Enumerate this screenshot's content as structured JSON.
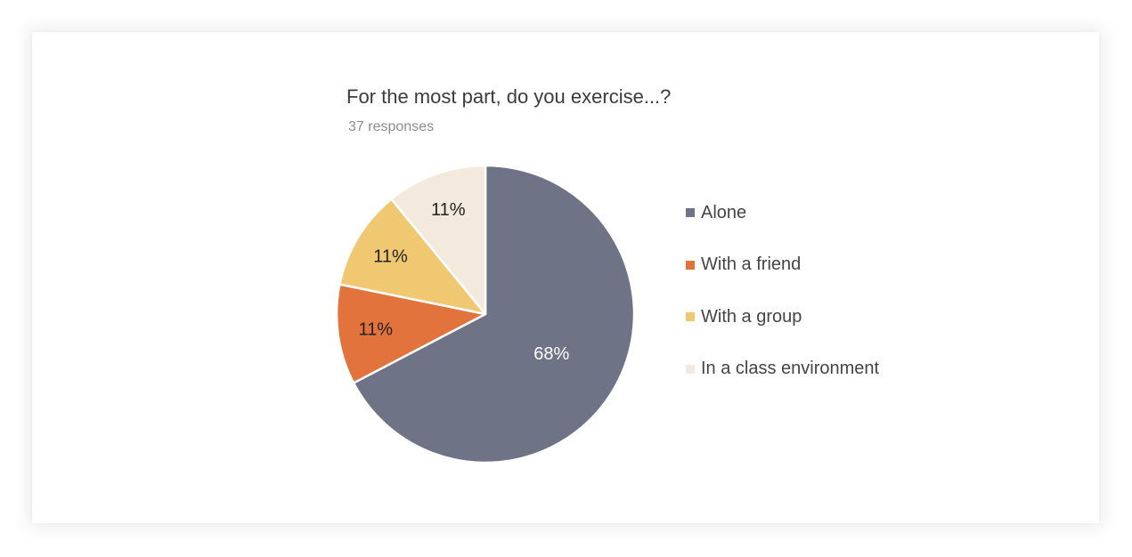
{
  "chart_data": {
    "type": "pie",
    "title": "For the most part, do you exercise...?",
    "subtitle": "37 responses",
    "legend_position": "right",
    "slices": [
      {
        "name": "Alone",
        "value": 68,
        "label": "68%",
        "color": "#6e7486",
        "label_color": "#ffffff"
      },
      {
        "name": "With a friend",
        "value": 11,
        "label": "11%",
        "color": "#e3733c",
        "label_color": "#222222"
      },
      {
        "name": "With a group",
        "value": 11,
        "label": "11%",
        "color": "#f0c872",
        "label_color": "#222222"
      },
      {
        "name": "In a class environment",
        "value": 11,
        "label": "11%",
        "color": "#f3e9dc",
        "label_color": "#222222"
      }
    ]
  }
}
